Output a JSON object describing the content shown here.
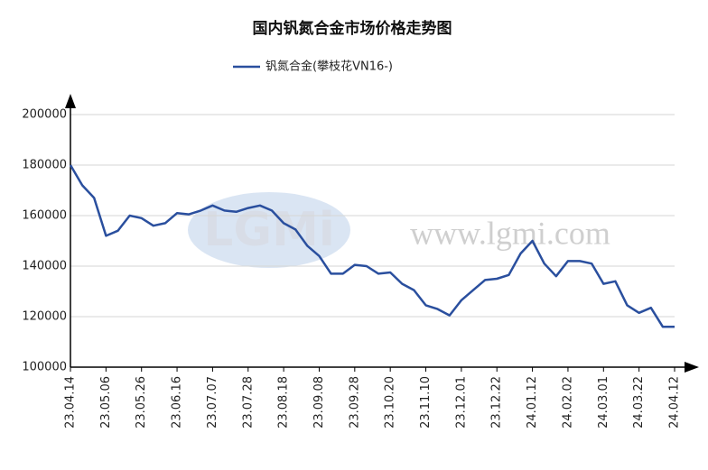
{
  "chart_data": {
    "type": "line",
    "title": "国内钒氮合金市场价格走势图",
    "watermark": "www.lgmi.com",
    "logo": "LGMi",
    "categories": [
      "23.04.14",
      null,
      null,
      "23.05.06",
      null,
      null,
      "23.05.26",
      null,
      null,
      "23.06.16",
      null,
      null,
      "23.07.07",
      null,
      null,
      "23.07.28",
      null,
      null,
      "23.08.18",
      null,
      null,
      "23.09.08",
      null,
      null,
      "23.09.28",
      null,
      null,
      "23.10.20",
      null,
      null,
      "23.11.10",
      null,
      null,
      "23.12.01",
      null,
      null,
      "23.12.22",
      null,
      null,
      "24.01.12",
      null,
      null,
      "24.02.02",
      null,
      null,
      "24.03.01",
      null,
      null,
      "24.03.22",
      null,
      null,
      "24.04.12"
    ],
    "series": [
      {
        "name": "钒氮合金(攀枝花VN16-)",
        "color": "#2a4f9e",
        "values": [
          180000,
          172000,
          167000,
          152000,
          154000,
          160000,
          159000,
          156000,
          157000,
          161000,
          160500,
          162000,
          164000,
          162000,
          161500,
          163000,
          164000,
          162000,
          157000,
          154500,
          148000,
          144000,
          137000,
          137000,
          140500,
          140000,
          137000,
          137500,
          133000,
          130500,
          124500,
          123000,
          120500,
          126500,
          130500,
          134500,
          135000,
          136500,
          145000,
          150000,
          141000,
          136000,
          142000,
          142000,
          141000,
          133000,
          134000,
          124500,
          121500,
          123500,
          116000,
          116000
        ]
      }
    ],
    "ylim": [
      100000,
      200000
    ],
    "yticks": [
      100000,
      120000,
      140000,
      160000,
      180000,
      200000
    ],
    "grid": true
  }
}
